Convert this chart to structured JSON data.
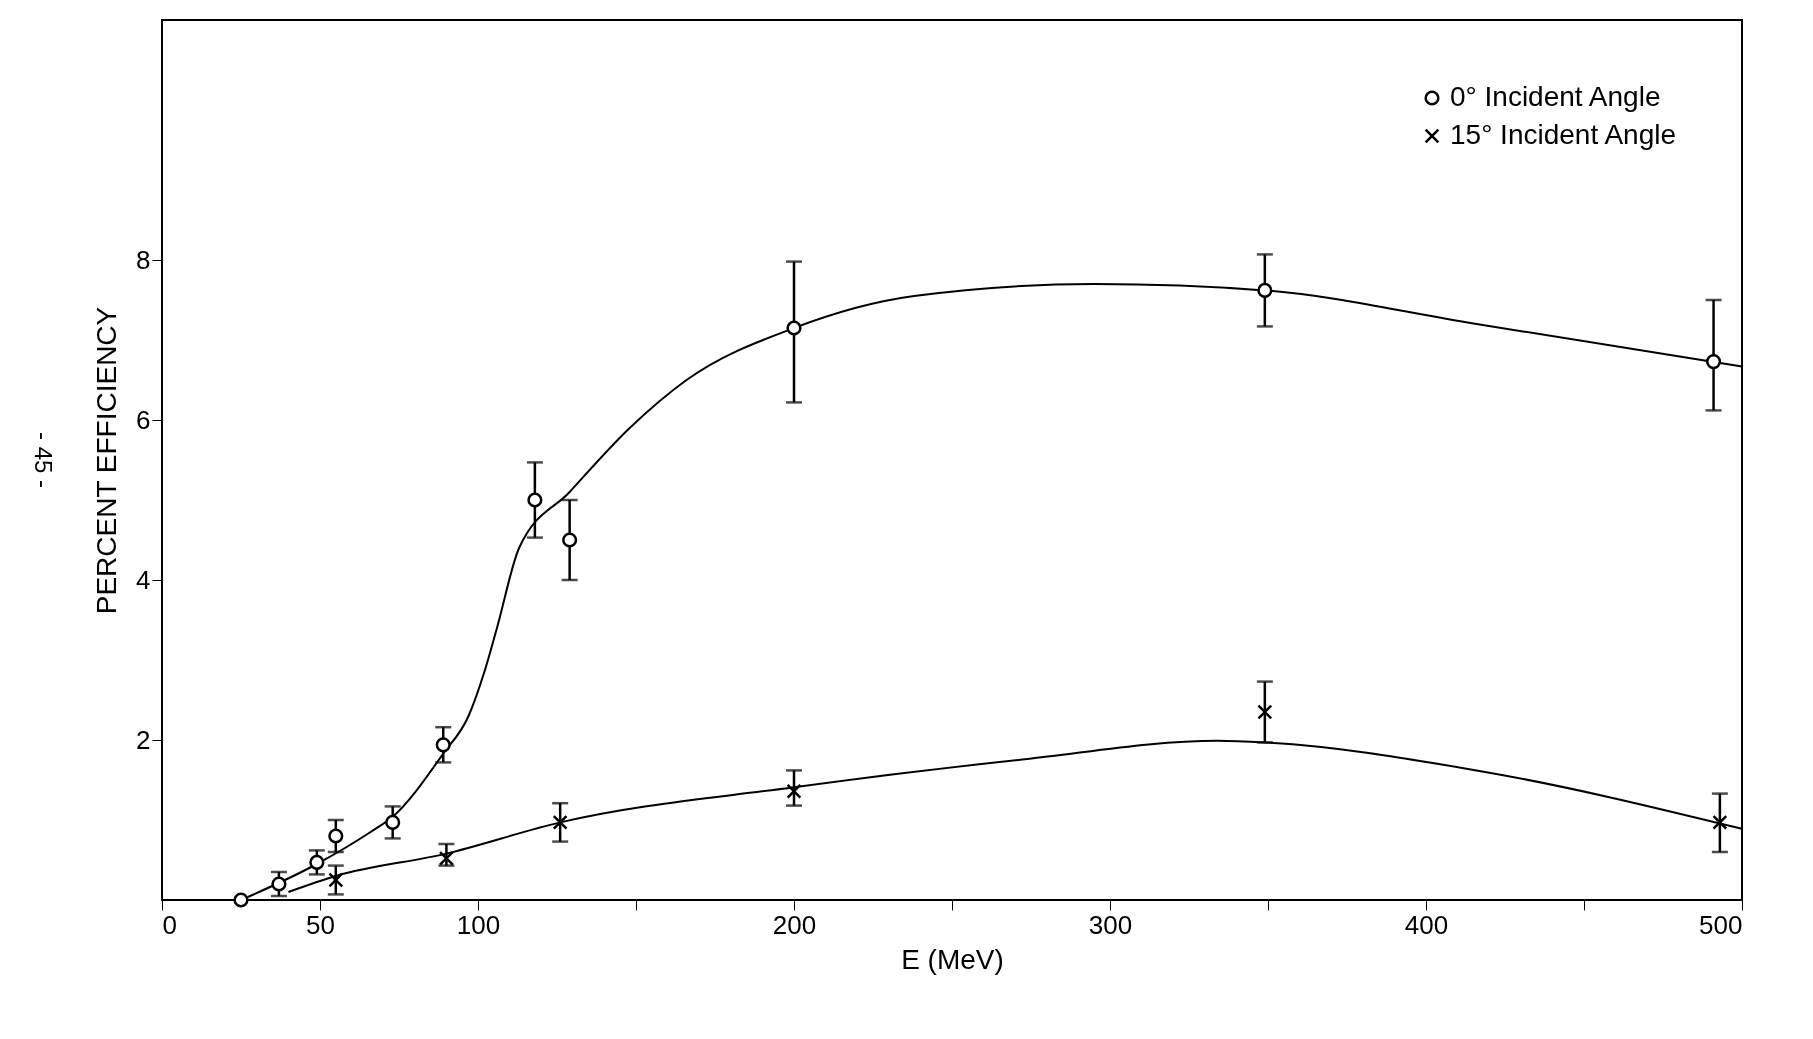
{
  "chart_data": {
    "type": "scatter",
    "xlabel": "E (MeV)",
    "ylabel": "PERCENT  EFFICIENCY",
    "annotations": [
      "- 45 -"
    ],
    "xlim": [
      0,
      500
    ],
    "xticks": [
      0,
      50,
      100,
      {
        "value": 150,
        "label": null
      },
      200,
      {
        "value": 250,
        "label": null
      },
      300,
      {
        "value": 350,
        "label": null
      },
      400,
      {
        "value": 450,
        "label": null
      },
      500
    ],
    "ylim": [
      0,
      11
    ],
    "yticks": [
      2,
      4,
      6,
      8
    ],
    "legend": "top right",
    "grid": false,
    "series": [
      {
        "name": "0° Incident Angle",
        "color": "#000000",
        "type": "scatter",
        "marker": "circle",
        "x": [
          25,
          37,
          49,
          55,
          73,
          89,
          118,
          129,
          200,
          349,
          491
        ],
        "values": [
          0,
          0.2,
          0.47,
          0.8,
          0.97,
          1.94,
          5.0,
          4.5,
          7.15,
          7.62,
          6.73
        ],
        "errors": [
          null,
          0.15,
          0.15,
          0.2,
          0.2,
          0.22,
          0.47,
          0.5,
          [
            6.22,
            7.98
          ],
          0.45,
          [
            6.12,
            7.5
          ]
        ]
      },
      {
        "name": "15° Incident Angle",
        "color": "#000000",
        "type": "scatter",
        "marker": "cross",
        "x": [
          55,
          90,
          126,
          200,
          349,
          493
        ],
        "values": [
          0.25,
          0.52,
          0.97,
          1.36,
          2.35,
          0.97
        ],
        "errors": [
          0.18,
          [
            0.43,
            0.7
          ],
          0.24,
          [
            1.18,
            1.62
          ],
          0.38,
          [
            0.6,
            1.33
          ]
        ]
      },
      {
        "color": "#000000",
        "type": "line",
        "x": [
          25,
          49,
          66,
          73,
          89,
          97,
          102,
          106,
          113,
          129,
          148,
          166,
          200,
          238,
          295,
          349,
          416,
          500
        ],
        "values": [
          0,
          0.45,
          0.85,
          1.04,
          1.83,
          2.3,
          2.85,
          3.4,
          4.4,
          5.1,
          5.9,
          6.5,
          7.15,
          7.55,
          7.7,
          7.62,
          7.2,
          6.67
        ]
      },
      {
        "color": "#000000",
        "type": "line",
        "x": [
          40,
          55,
          90,
          126,
          200,
          273,
          334,
          349,
          416,
          500
        ],
        "values": [
          0.1,
          0.3,
          0.58,
          0.97,
          1.41,
          1.76,
          1.99,
          1.97,
          1.62,
          0.89
        ]
      }
    ]
  }
}
